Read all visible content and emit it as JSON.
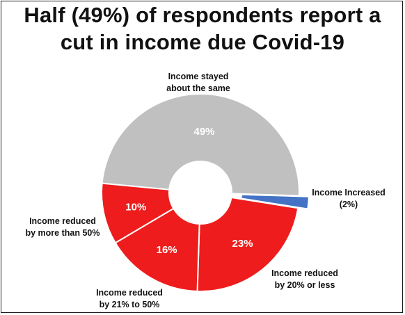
{
  "title": {
    "line1": "Half (49%) of respondents report a",
    "line2": "cut in income due Covid-19"
  },
  "chart_data": {
    "type": "pie",
    "subtype": "donut",
    "slices": [
      {
        "key": "same",
        "value": 49,
        "label": "49%",
        "callout": [
          "Income stayed",
          "about the same"
        ],
        "color": "#c0c0c0"
      },
      {
        "key": "increased",
        "value": 2,
        "label": "",
        "callout": [
          "Income Increased",
          "(2%)"
        ],
        "color": "#4472c4"
      },
      {
        "key": "le20",
        "value": 23,
        "label": "23%",
        "callout": [
          "Income reduced",
          "by 20% or less"
        ],
        "color": "#ee1c1c"
      },
      {
        "key": "21to50",
        "value": 16,
        "label": "16%",
        "callout": [
          "Income reduced",
          "by 21% to 50%"
        ],
        "color": "#ee1c1c"
      },
      {
        "key": "gt50",
        "value": 10,
        "label": "10%",
        "callout": [
          "Income reduced",
          "by more than 50%"
        ],
        "color": "#ee1c1c"
      }
    ]
  }
}
